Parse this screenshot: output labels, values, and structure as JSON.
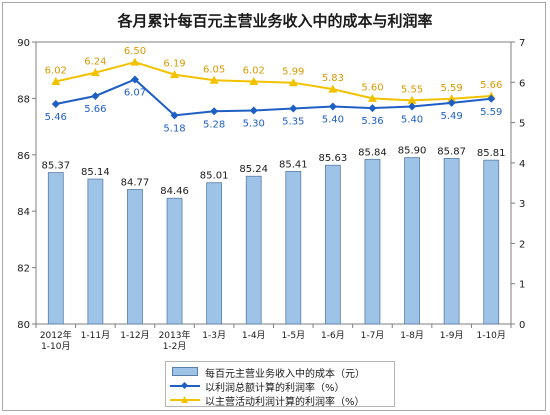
{
  "chart_data": {
    "type": "bar",
    "title": "各月累计每百元主营业务收入中的成本与利润率",
    "categories": [
      "2012年\n1-10月",
      "1-11月",
      "1-12月",
      "2013年\n1-2月",
      "1-3月",
      "1-4月",
      "1-5月",
      "1-6月",
      "1-7月",
      "1-8月",
      "1-9月",
      "1-10月"
    ],
    "y_left": {
      "range": [
        80,
        90
      ],
      "ticks": [
        80,
        82,
        84,
        86,
        88,
        90
      ]
    },
    "y_right": {
      "range": [
        0,
        7
      ],
      "ticks": [
        0,
        1,
        2,
        3,
        4,
        5,
        6,
        7
      ]
    },
    "grid": false,
    "legend": "bottom",
    "series": [
      {
        "name": "每百元主营业务收入中的成本（元）",
        "type": "bar",
        "axis": "left",
        "color": "#9dc3e6",
        "values": [
          85.37,
          85.14,
          84.77,
          84.46,
          85.01,
          85.24,
          85.41,
          85.63,
          85.84,
          85.9,
          85.87,
          85.81
        ]
      },
      {
        "name": "以利润总额计算的利润率（%）",
        "type": "line",
        "axis": "right",
        "color": "#1f5fc4",
        "marker": "diamond",
        "values": [
          5.46,
          5.66,
          6.07,
          5.18,
          5.28,
          5.3,
          5.35,
          5.4,
          5.36,
          5.4,
          5.49,
          5.59
        ]
      },
      {
        "name": "以主营活动利润计算的利润率（%）",
        "type": "line",
        "axis": "right",
        "color": "#f2c200",
        "marker": "triangle",
        "values": [
          6.02,
          6.24,
          6.5,
          6.19,
          6.05,
          6.02,
          5.99,
          5.83,
          5.6,
          5.55,
          5.59,
          5.66
        ]
      }
    ]
  }
}
